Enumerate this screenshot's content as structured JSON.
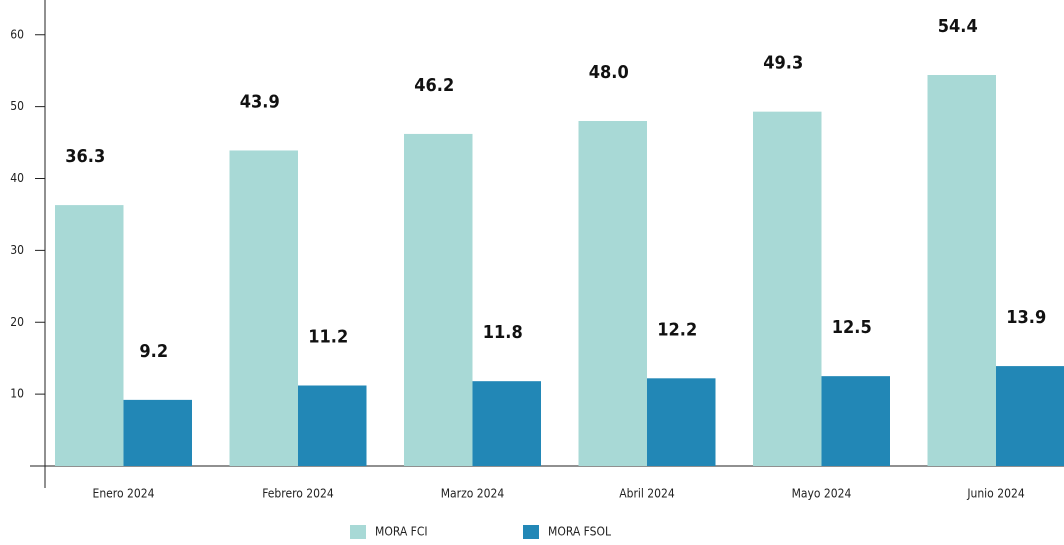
{
  "chart_data": {
    "type": "bar",
    "categories": [
      "Enero 2024",
      "Febrero 2024",
      "Marzo 2024",
      "Abril 2024",
      "Mayo 2024",
      "Junio 2024"
    ],
    "series": [
      {
        "name": "MORA FCI",
        "color": "#a8d9d6",
        "values": [
          36.3,
          43.9,
          46.2,
          48.0,
          49.3,
          54.4
        ],
        "value_labels": [
          "36.3",
          "43.9",
          "46.2",
          "48.0",
          "49.3",
          "54.4"
        ]
      },
      {
        "name": "MORA FSOL",
        "color": "#2287b6",
        "values": [
          9.2,
          11.2,
          11.8,
          12.2,
          12.5,
          13.9
        ],
        "value_labels": [
          "9.2",
          "11.2",
          "11.8",
          "12.2",
          "12.5",
          "13.9"
        ]
      }
    ],
    "ylim": [
      0,
      64
    ],
    "yticks": [
      10,
      20,
      30,
      40,
      50,
      60
    ]
  }
}
